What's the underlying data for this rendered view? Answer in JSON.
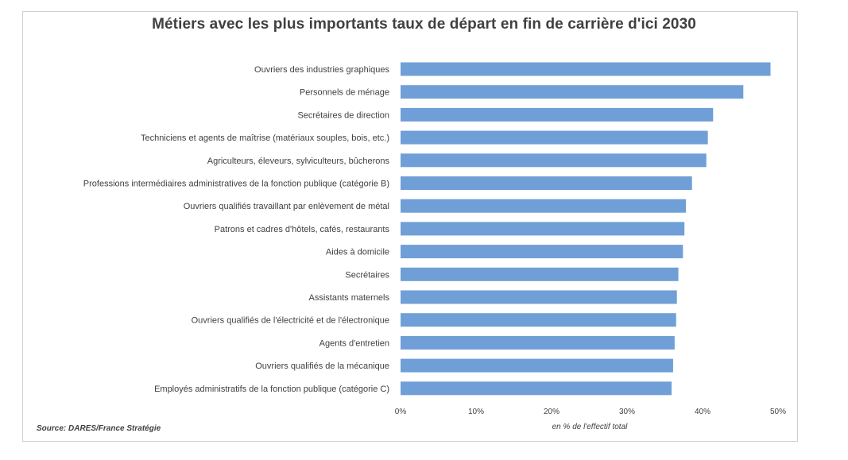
{
  "title": "Métiers avec les plus importants taux de départ en fin de carrière d'ici 2030",
  "source": "Source: DARES/France Stratégie",
  "chart_data": {
    "type": "bar",
    "orientation": "horizontal",
    "title": "Métiers avec les plus importants taux de départ en fin de carrière d'ici 2030",
    "xlabel": "en % de l'effectif total",
    "ylabel": "",
    "xlim": [
      0,
      50
    ],
    "xticks": [
      0,
      10,
      20,
      30,
      40,
      50
    ],
    "xtick_labels": [
      "0%",
      "10%",
      "20%",
      "30%",
      "40%",
      "50%"
    ],
    "bar_color": "#6f9fd6",
    "categories": [
      "Ouvriers des industries graphiques",
      "Personnels de ménage",
      "Secrétaires de direction",
      "Techniciens et agents de maîtrise (matériaux souples, bois, etc.)",
      "Agriculteurs, éleveurs, sylviculteurs, bûcherons",
      "Professions intermédiaires administratives de la fonction publique (catégorie B)",
      "Ouvriers qualifiés travaillant par enlèvement de métal",
      "Patrons et cadres d'hôtels, cafés, restaurants",
      "Aides à domicile",
      "Secrétaires",
      "Assistants maternels",
      "Ouvriers qualifiés de l'électricité et de l'électronique",
      "Agents d'entretien",
      "Ouvriers qualifiés de la mécanique",
      "Employés administratifs de la fonction publique (catégorie C)"
    ],
    "values": [
      49.0,
      45.4,
      41.4,
      40.7,
      40.5,
      38.6,
      37.8,
      37.6,
      37.4,
      36.8,
      36.6,
      36.5,
      36.3,
      36.1,
      35.9
    ]
  }
}
